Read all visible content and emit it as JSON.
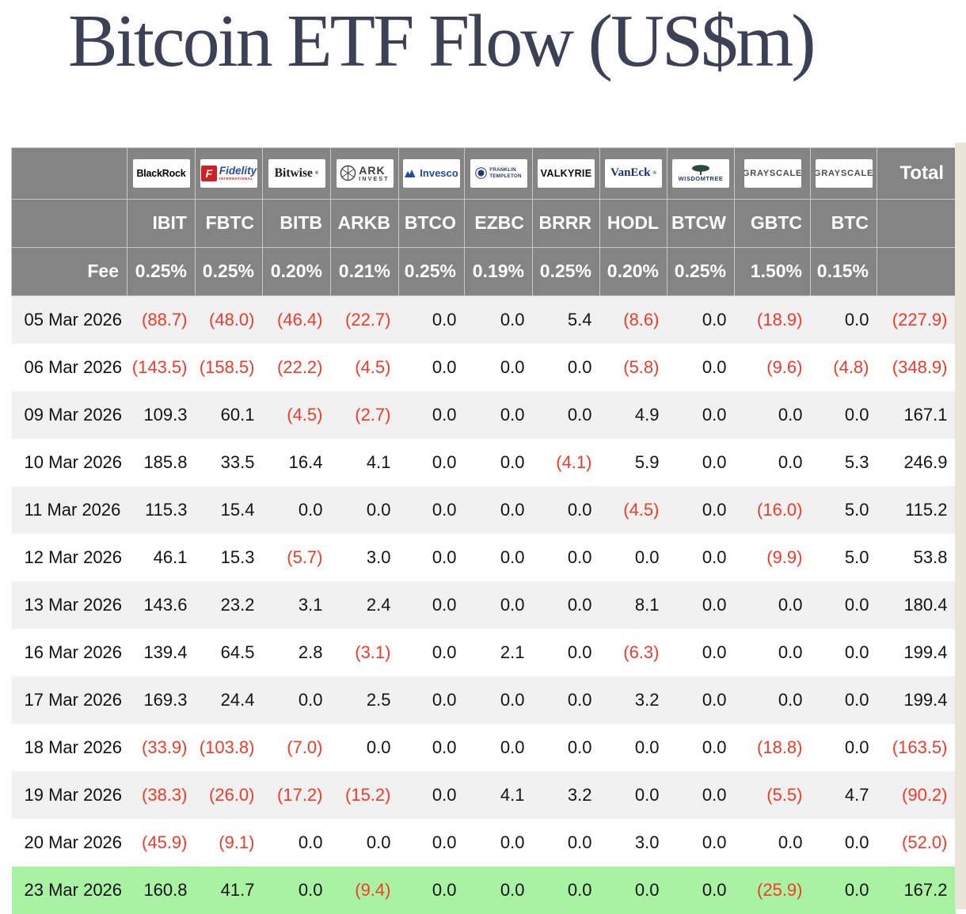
{
  "title": "Bitcoin ETF Flow (US$m)",
  "colors": {
    "header_bg": "#848484",
    "negative_red": "#f43a2a",
    "highlight_green": "#a9f2a3",
    "row_stripe": "#f1f1f1",
    "title_navy": "#3c4156",
    "fidelity_red": "#ce2127",
    "fidelity_blue": "#234f9e",
    "invesco_blue": "#1a4ca6",
    "vaneck_navy": "#1b2f72"
  },
  "chart_data": {
    "type": "table",
    "title": "Bitcoin ETF Flow (US$m)",
    "fee_label": "Fee",
    "total_label": "Total",
    "negative_format": "parentheses shown in red",
    "providers": [
      {
        "name": "blackrock",
        "logo": "blackrock",
        "brand": "BlackRock",
        "ticker": "IBIT",
        "fee": "0.25%"
      },
      {
        "name": "fidelity",
        "logo": "fidelity",
        "brand": "Fidelity",
        "brand_sub": "INTERNATIONAL",
        "ticker": "FBTC",
        "fee": "0.25%"
      },
      {
        "name": "bitwise",
        "logo": "bitwise",
        "brand": "Bitwise",
        "ticker": "BITB",
        "fee": "0.20%"
      },
      {
        "name": "ark-invest",
        "logo": "ark",
        "brand": "ARK",
        "brand_sub": "INVEST",
        "ticker": "ARKB",
        "fee": "0.21%"
      },
      {
        "name": "invesco",
        "logo": "invesco",
        "brand": "Invesco",
        "ticker": "BTCO",
        "fee": "0.25%"
      },
      {
        "name": "franklin-templeton",
        "logo": "franklin",
        "brand": "FRANKLIN",
        "brand_sub": "TEMPLETON",
        "ticker": "EZBC",
        "fee": "0.19%"
      },
      {
        "name": "valkyrie",
        "logo": "valkyrie",
        "brand": "VALKYRIE",
        "ticker": "BRRR",
        "fee": "0.25%"
      },
      {
        "name": "vaneck",
        "logo": "vaneck",
        "brand": "VanEck",
        "ticker": "HODL",
        "fee": "0.20%"
      },
      {
        "name": "wisdomtree",
        "logo": "wisdomtree",
        "brand": "WISDOMTREE",
        "ticker": "BTCW",
        "fee": "0.25%"
      },
      {
        "name": "grayscale-gbtc",
        "logo": "grayscale",
        "brand": "GRAYSCALE",
        "ticker": "GBTC",
        "fee": "1.50%"
      },
      {
        "name": "grayscale-btc",
        "logo": "grayscale",
        "brand": "GRAYSCALE",
        "ticker": "BTC",
        "fee": "0.15%"
      }
    ],
    "rows": [
      {
        "date": "05 Mar 2026",
        "values": [
          "(88.7)",
          "(48.0)",
          "(46.4)",
          "(22.7)",
          "0.0",
          "0.0",
          "5.4",
          "(8.6)",
          "0.0",
          "(18.9)",
          "0.0"
        ],
        "total": "(227.9)",
        "highlight": false
      },
      {
        "date": "06 Mar 2026",
        "values": [
          "(143.5)",
          "(158.5)",
          "(22.2)",
          "(4.5)",
          "0.0",
          "0.0",
          "0.0",
          "(5.8)",
          "0.0",
          "(9.6)",
          "(4.8)"
        ],
        "total": "(348.9)",
        "highlight": false
      },
      {
        "date": "09 Mar 2026",
        "values": [
          "109.3",
          "60.1",
          "(4.5)",
          "(2.7)",
          "0.0",
          "0.0",
          "0.0",
          "4.9",
          "0.0",
          "0.0",
          "0.0"
        ],
        "total": "167.1",
        "highlight": false
      },
      {
        "date": "10 Mar 2026",
        "values": [
          "185.8",
          "33.5",
          "16.4",
          "4.1",
          "0.0",
          "0.0",
          "(4.1)",
          "5.9",
          "0.0",
          "0.0",
          "5.3"
        ],
        "total": "246.9",
        "highlight": false
      },
      {
        "date": "11 Mar 2026",
        "values": [
          "115.3",
          "15.4",
          "0.0",
          "0.0",
          "0.0",
          "0.0",
          "0.0",
          "(4.5)",
          "0.0",
          "(16.0)",
          "5.0"
        ],
        "total": "115.2",
        "highlight": false
      },
      {
        "date": "12 Mar 2026",
        "values": [
          "46.1",
          "15.3",
          "(5.7)",
          "3.0",
          "0.0",
          "0.0",
          "0.0",
          "0.0",
          "0.0",
          "(9.9)",
          "5.0"
        ],
        "total": "53.8",
        "highlight": false
      },
      {
        "date": "13 Mar 2026",
        "values": [
          "143.6",
          "23.2",
          "3.1",
          "2.4",
          "0.0",
          "0.0",
          "0.0",
          "8.1",
          "0.0",
          "0.0",
          "0.0"
        ],
        "total": "180.4",
        "highlight": false
      },
      {
        "date": "16 Mar 2026",
        "values": [
          "139.4",
          "64.5",
          "2.8",
          "(3.1)",
          "0.0",
          "2.1",
          "0.0",
          "(6.3)",
          "0.0",
          "0.0",
          "0.0"
        ],
        "total": "199.4",
        "highlight": false
      },
      {
        "date": "17 Mar 2026",
        "values": [
          "169.3",
          "24.4",
          "0.0",
          "2.5",
          "0.0",
          "0.0",
          "0.0",
          "3.2",
          "0.0",
          "0.0",
          "0.0"
        ],
        "total": "199.4",
        "highlight": false
      },
      {
        "date": "18 Mar 2026",
        "values": [
          "(33.9)",
          "(103.8)",
          "(7.0)",
          "0.0",
          "0.0",
          "0.0",
          "0.0",
          "0.0",
          "0.0",
          "(18.8)",
          "0.0"
        ],
        "total": "(163.5)",
        "highlight": false
      },
      {
        "date": "19 Mar 2026",
        "values": [
          "(38.3)",
          "(26.0)",
          "(17.2)",
          "(15.2)",
          "0.0",
          "4.1",
          "3.2",
          "0.0",
          "0.0",
          "(5.5)",
          "4.7"
        ],
        "total": "(90.2)",
        "highlight": false
      },
      {
        "date": "20 Mar 2026",
        "values": [
          "(45.9)",
          "(9.1)",
          "0.0",
          "0.0",
          "0.0",
          "0.0",
          "0.0",
          "3.0",
          "0.0",
          "0.0",
          "0.0"
        ],
        "total": "(52.0)",
        "highlight": false
      },
      {
        "date": "23 Mar 2026",
        "values": [
          "160.8",
          "41.7",
          "0.0",
          "(9.4)",
          "0.0",
          "0.0",
          "0.0",
          "0.0",
          "0.0",
          "(25.9)",
          "0.0"
        ],
        "total": "167.2",
        "highlight": true
      }
    ]
  }
}
